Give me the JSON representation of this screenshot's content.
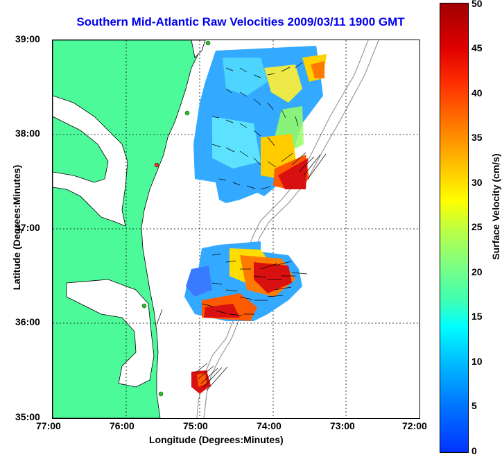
{
  "title": "Southern Mid-Atlantic Raw Velocities 2009/03/11 1900 GMT",
  "axes": {
    "xlabel": "Longitude (Degrees:Minutes)",
    "ylabel": "Latitude (Degrees:Minutes)",
    "x_ticks": [
      "77:00",
      "76:00",
      "75:00",
      "74:00",
      "73:00",
      "72:00"
    ],
    "y_ticks": [
      "39:00",
      "38:00",
      "37:00",
      "36:00",
      "35:00"
    ]
  },
  "colorbar": {
    "label": "Surface Velocity (cm/s)",
    "ticks": [
      "50",
      "45",
      "40",
      "35",
      "30",
      "25",
      "20",
      "15",
      "10",
      "5",
      "0"
    ]
  },
  "colors": {
    "land": "#4dfa9a",
    "coast": "#000000",
    "bathy": "#9a9a9a",
    "grid": "#000000",
    "station": "#22cc22",
    "station_alt": "#ee3322",
    "vector": "#000000"
  }
}
